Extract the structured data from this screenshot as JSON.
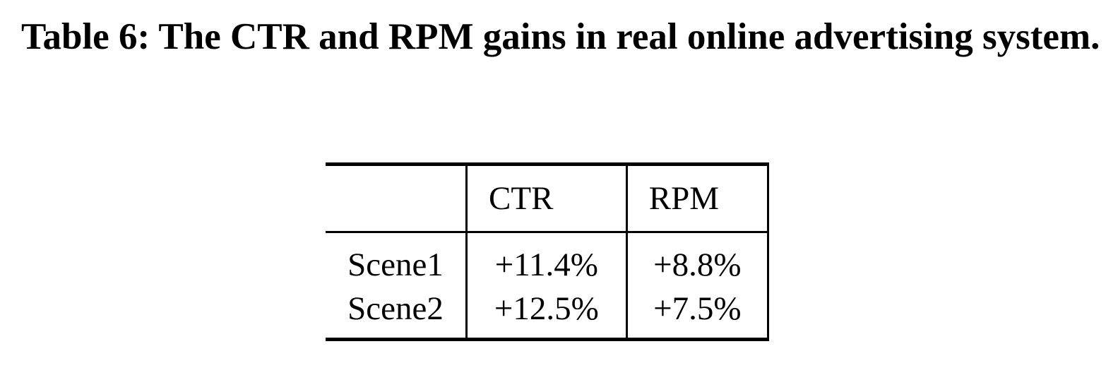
{
  "caption": "Table 6: The CTR and RPM gains in real online advertising system.",
  "table": {
    "headers": [
      "",
      "CTR",
      "RPM"
    ],
    "rows": [
      {
        "label": "Scene1",
        "ctr": "+11.4%",
        "rpm": "+8.8%"
      },
      {
        "label": "Scene2",
        "ctr": "+12.5%",
        "rpm": "+7.5%"
      }
    ]
  }
}
